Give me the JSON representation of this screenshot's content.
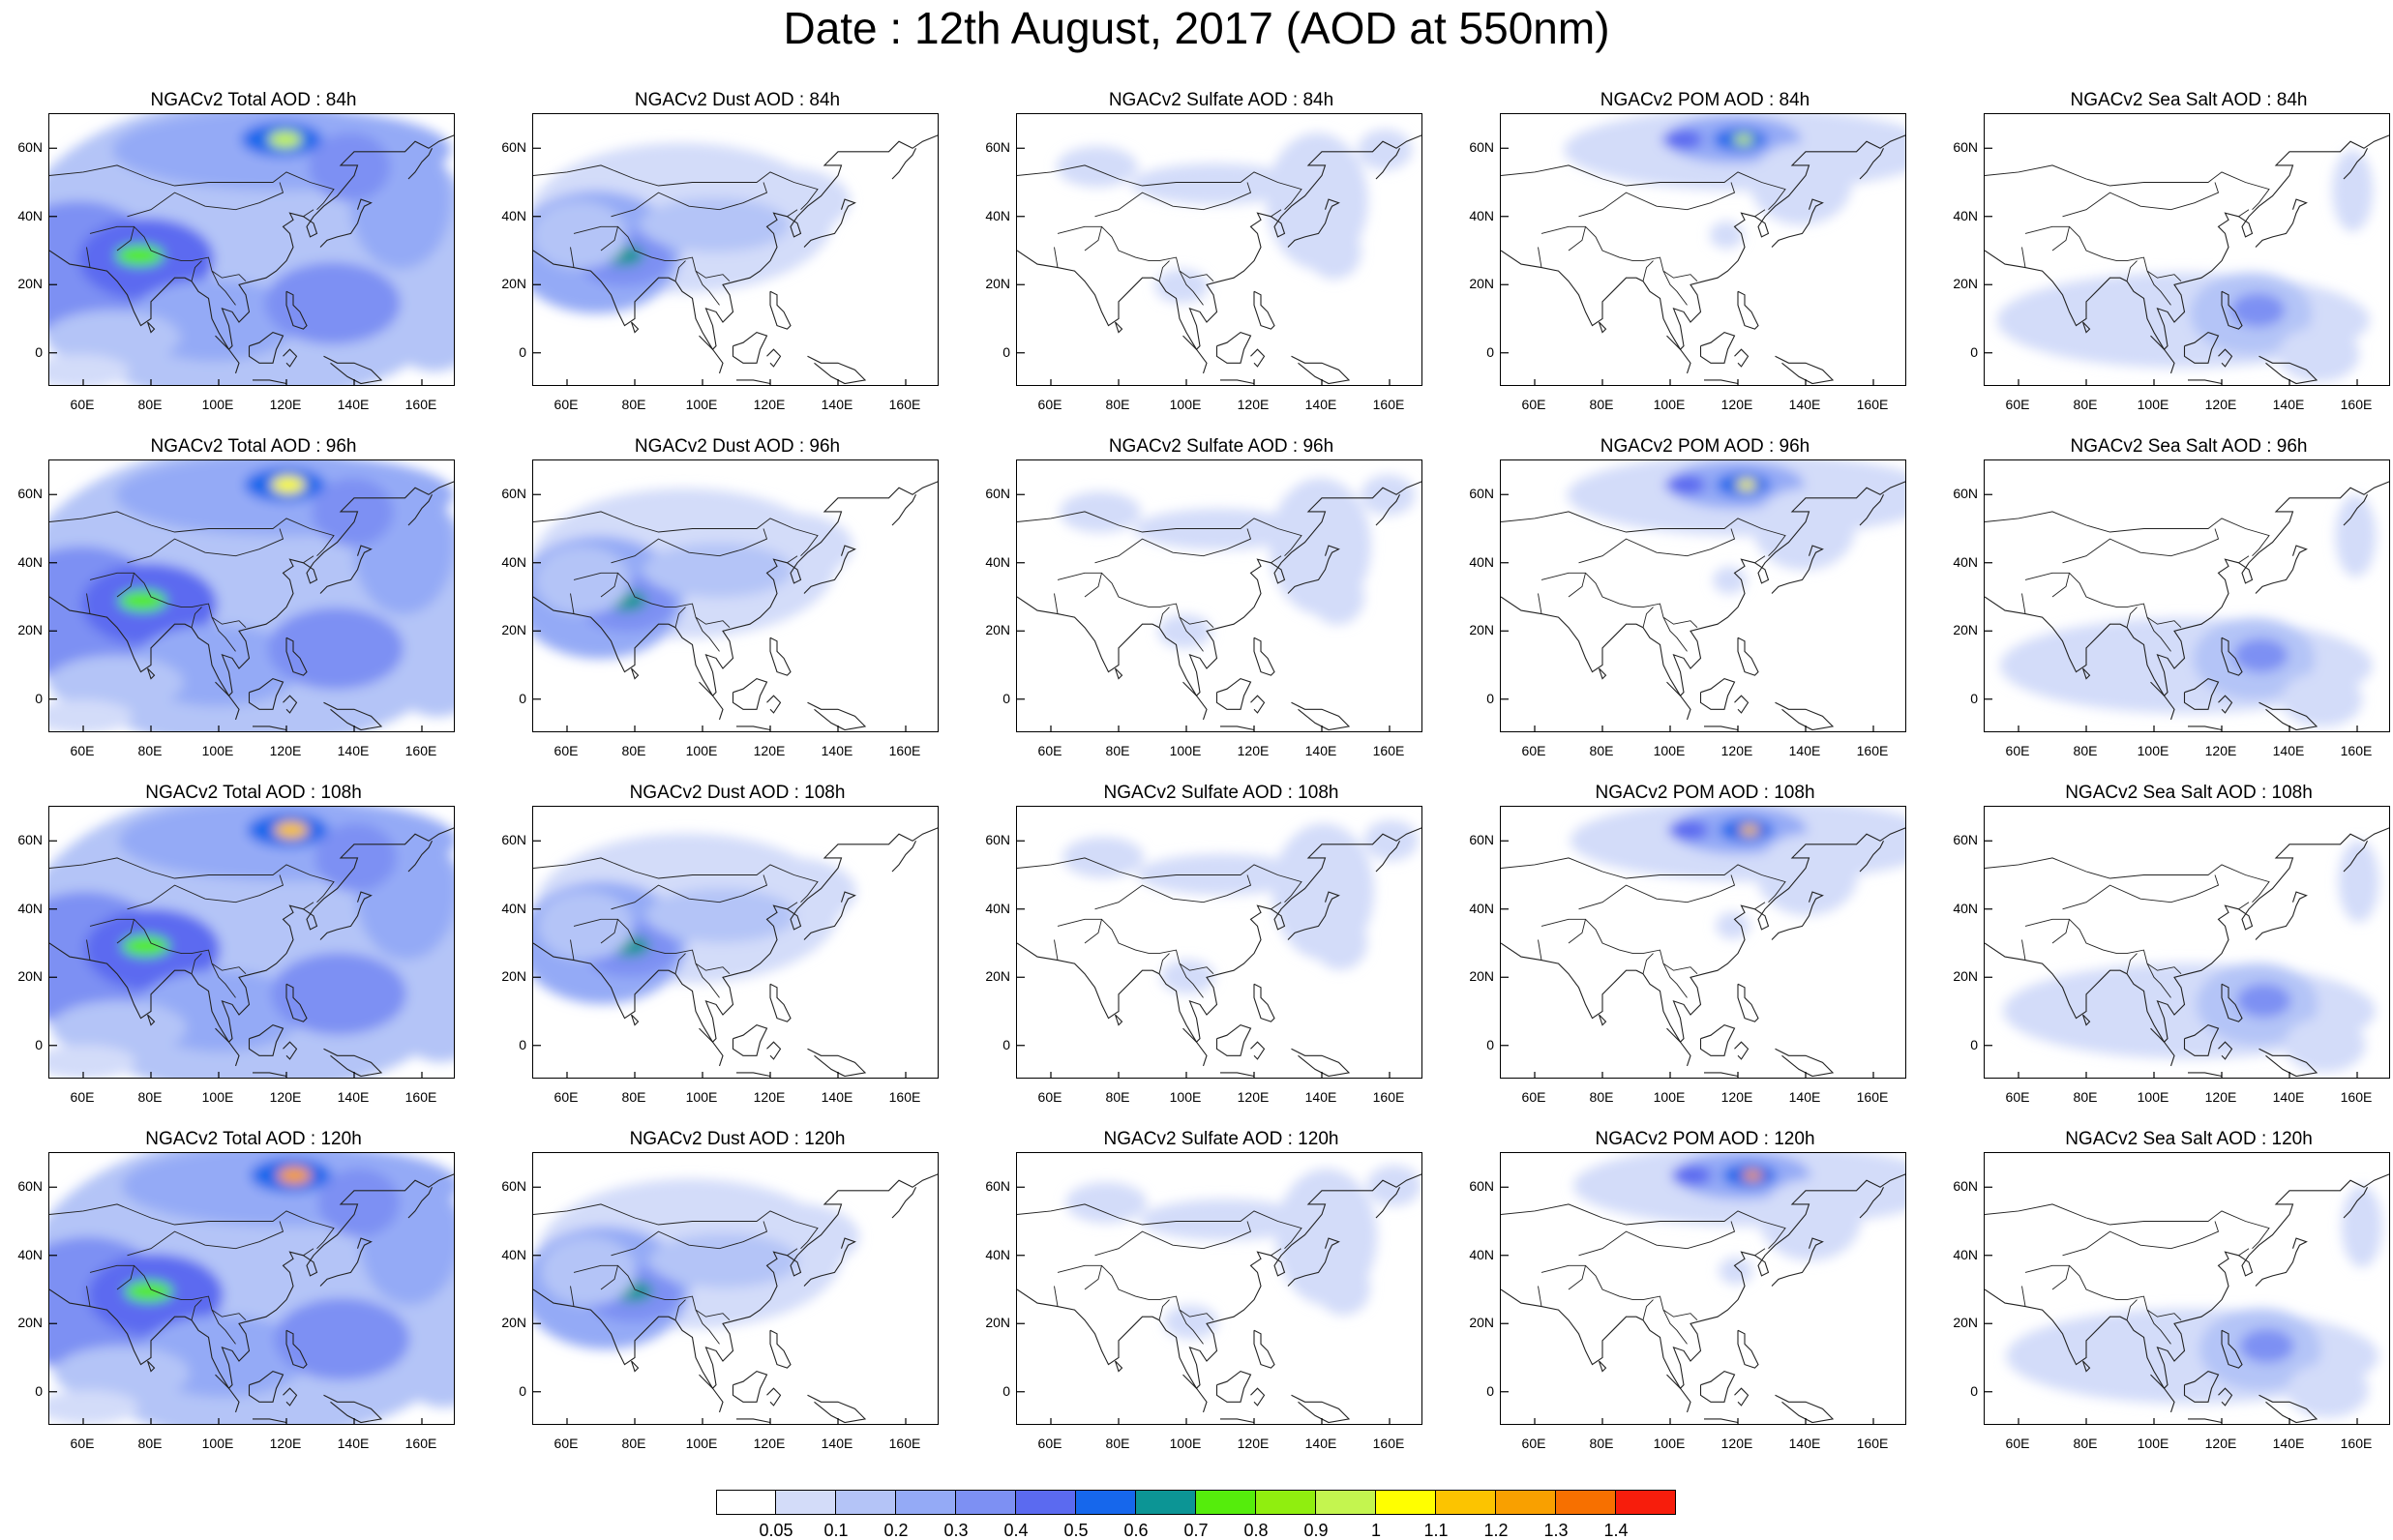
{
  "title": "Date : 12th August, 2017 (AOD at 550nm)",
  "lat_labels": [
    "60N",
    "40N",
    "20N",
    "0"
  ],
  "lon_labels": [
    "60E",
    "80E",
    "100E",
    "120E",
    "140E",
    "160E"
  ],
  "panels": [
    [
      {
        "title": "NGACv2 Total AOD : 84h",
        "species": "total",
        "hour": 84
      },
      {
        "title": "NGACv2 Dust AOD : 84h",
        "species": "dust",
        "hour": 84
      },
      {
        "title": "NGACv2 Sulfate AOD : 84h",
        "species": "sulfate",
        "hour": 84
      },
      {
        "title": "NGACv2 POM AOD : 84h",
        "species": "pom",
        "hour": 84
      },
      {
        "title": "NGACv2 Sea Salt AOD : 84h",
        "species": "seasalt",
        "hour": 84
      }
    ],
    [
      {
        "title": "NGACv2 Total AOD : 96h",
        "species": "total",
        "hour": 96
      },
      {
        "title": "NGACv2 Dust AOD : 96h",
        "species": "dust",
        "hour": 96
      },
      {
        "title": "NGACv2 Sulfate AOD : 96h",
        "species": "sulfate",
        "hour": 96
      },
      {
        "title": "NGACv2 POM AOD : 96h",
        "species": "pom",
        "hour": 96
      },
      {
        "title": "NGACv2 Sea Salt AOD : 96h",
        "species": "seasalt",
        "hour": 96
      }
    ],
    [
      {
        "title": "NGACv2 Total AOD : 108h",
        "species": "total",
        "hour": 108
      },
      {
        "title": "NGACv2 Dust AOD : 108h",
        "species": "dust",
        "hour": 108
      },
      {
        "title": "NGACv2 Sulfate AOD : 108h",
        "species": "sulfate",
        "hour": 108
      },
      {
        "title": "NGACv2 POM AOD : 108h",
        "species": "pom",
        "hour": 108
      },
      {
        "title": "NGACv2 Sea Salt AOD : 108h",
        "species": "seasalt",
        "hour": 108
      }
    ],
    [
      {
        "title": "NGACv2 Total AOD : 120h",
        "species": "total",
        "hour": 120
      },
      {
        "title": "NGACv2 Dust AOD : 120h",
        "species": "dust",
        "hour": 120
      },
      {
        "title": "NGACv2 Sulfate AOD : 120h",
        "species": "sulfate",
        "hour": 120
      },
      {
        "title": "NGACv2 POM AOD : 120h",
        "species": "pom",
        "hour": 120
      },
      {
        "title": "NGACv2 Sea Salt  AOD : 120h",
        "species": "seasalt",
        "hour": 120
      }
    ]
  ],
  "colorbar": {
    "colors": [
      "#ffffff",
      "#d3dcf9",
      "#b4c4f7",
      "#94aaf6",
      "#7d90f3",
      "#5b6af0",
      "#1667ec",
      "#0c9595",
      "#55ed0c",
      "#90ee0f",
      "#c4f54f",
      "#ffff00",
      "#fcc400",
      "#f9a000",
      "#f77000",
      "#f71d0c"
    ],
    "labels": [
      "0.05",
      "0.1",
      "0.2",
      "0.3",
      "0.4",
      "0.5",
      "0.6",
      "0.7",
      "0.8",
      "0.9",
      "1",
      "1.1",
      "1.2",
      "1.3",
      "1.4"
    ]
  },
  "chart_data": {
    "type": "heatmap",
    "variable": "AOD at 550nm",
    "date": "12th August, 2017",
    "map_extent": {
      "lon": [
        50,
        170
      ],
      "lat": [
        -10,
        70
      ]
    },
    "forecast_hours": [
      84,
      96,
      108,
      120
    ],
    "species": [
      "Total",
      "Dust",
      "Sulfate",
      "POM",
      "Sea Salt"
    ],
    "hotspots": {
      "total": [
        {
          "lon": 120,
          "lat": 63,
          "aod": 1.0
        },
        {
          "lon": 78,
          "lat": 29,
          "aod": 0.8
        }
      ],
      "dust": [
        {
          "lon": 78,
          "lat": 28,
          "aod": 0.8
        }
      ],
      "sulfate": [
        {
          "lon": 140,
          "lat": 40,
          "aod": 0.2
        }
      ],
      "pom": [
        {
          "lon": 122,
          "lat": 63,
          "aod": 1.0
        }
      ],
      "seasalt": [
        {
          "lon": 130,
          "lat": 12,
          "aod": 0.4
        }
      ]
    }
  }
}
